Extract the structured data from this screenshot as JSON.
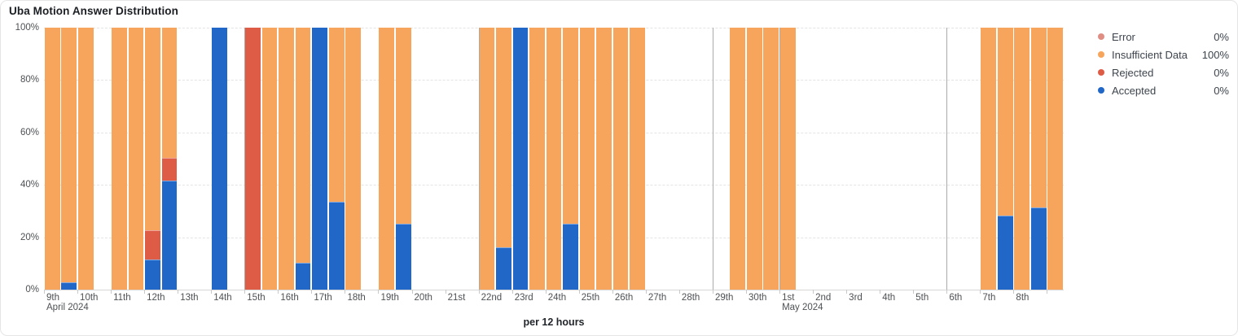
{
  "card": {
    "title": "Uba Motion Answer Distribution"
  },
  "legend": {
    "items": [
      {
        "label": "Error",
        "value": "0%",
        "color": "#E08E83"
      },
      {
        "label": "Insufficient Data",
        "value": "100%",
        "color": "#F7A55C"
      },
      {
        "label": "Rejected",
        "value": "0%",
        "color": "#DE5B46"
      },
      {
        "label": "Accepted",
        "value": "0%",
        "color": "#2067C7"
      }
    ]
  },
  "chart_data": {
    "type": "bar",
    "stacked": true,
    "title": "Uba Motion Answer Distribution",
    "xlabel": "per 12 hours",
    "ylabel": "",
    "ylim": [
      0,
      100
    ],
    "y_ticks": [
      "0%",
      "20%",
      "40%",
      "60%",
      "80%",
      "100%"
    ],
    "grid": "horizontal-dashed",
    "legend_position": "right",
    "bucket_hours": 12,
    "slots_total": 61,
    "colors": {
      "accepted": "#2067C7",
      "rejected": "#DE5B46",
      "insufficient": "#F7A55C",
      "error": "#E08E83",
      "separator": "#ababab"
    },
    "days": [
      {
        "slot": 0,
        "label": "9th",
        "month_label": "April 2024"
      },
      {
        "slot": 2,
        "label": "10th"
      },
      {
        "slot": 4,
        "label": "11th"
      },
      {
        "slot": 6,
        "label": "12th"
      },
      {
        "slot": 8,
        "label": "13th"
      },
      {
        "slot": 10,
        "label": "14th"
      },
      {
        "slot": 12,
        "label": "15th"
      },
      {
        "slot": 14,
        "label": "16th"
      },
      {
        "slot": 16,
        "label": "17th"
      },
      {
        "slot": 18,
        "label": "18th"
      },
      {
        "slot": 20,
        "label": "19th"
      },
      {
        "slot": 22,
        "label": "20th"
      },
      {
        "slot": 24,
        "label": "21st"
      },
      {
        "slot": 26,
        "label": "22nd"
      },
      {
        "slot": 28,
        "label": "23rd"
      },
      {
        "slot": 30,
        "label": "24th"
      },
      {
        "slot": 32,
        "label": "25th"
      },
      {
        "slot": 34,
        "label": "26th"
      },
      {
        "slot": 36,
        "label": "27th"
      },
      {
        "slot": 38,
        "label": "28th"
      },
      {
        "slot": 40,
        "label": "29th"
      },
      {
        "slot": 42,
        "label": "30th"
      },
      {
        "slot": 44,
        "label": "1st",
        "month_label": "May 2024"
      },
      {
        "slot": 46,
        "label": "2nd"
      },
      {
        "slot": 48,
        "label": "3rd"
      },
      {
        "slot": 50,
        "label": "4th"
      },
      {
        "slot": 52,
        "label": "5th"
      },
      {
        "slot": 54,
        "label": "6th"
      },
      {
        "slot": 56,
        "label": "7th"
      },
      {
        "slot": 58,
        "label": "8th"
      },
      {
        "slot": 60,
        "label": ""
      }
    ],
    "separator_slots": [
      12,
      26,
      40,
      44,
      54
    ],
    "bars": [
      {
        "slot": 0,
        "accepted": 0,
        "rejected": 0,
        "insufficient": 100
      },
      {
        "slot": 1,
        "accepted": 2.5,
        "rejected": 0,
        "insufficient": 97.5
      },
      {
        "slot": 2,
        "accepted": 0,
        "rejected": 0,
        "insufficient": 100
      },
      {
        "slot": 4,
        "accepted": 0,
        "rejected": 0,
        "insufficient": 100
      },
      {
        "slot": 5,
        "accepted": 0,
        "rejected": 0,
        "insufficient": 100
      },
      {
        "slot": 6,
        "accepted": 11.1,
        "rejected": 11.1,
        "insufficient": 77.8
      },
      {
        "slot": 7,
        "accepted": 41.7,
        "rejected": 8.3,
        "insufficient": 50
      },
      {
        "slot": 10,
        "accepted": 100,
        "rejected": 0,
        "insufficient": 0
      },
      {
        "slot": 12,
        "accepted": 0,
        "rejected": 100,
        "insufficient": 0
      },
      {
        "slot": 13,
        "accepted": 0,
        "rejected": 0,
        "insufficient": 100
      },
      {
        "slot": 14,
        "accepted": 0,
        "rejected": 0,
        "insufficient": 100
      },
      {
        "slot": 15,
        "accepted": 10,
        "rejected": 0,
        "insufficient": 90
      },
      {
        "slot": 16,
        "accepted": 100,
        "rejected": 0,
        "insufficient": 0
      },
      {
        "slot": 17,
        "accepted": 33.3,
        "rejected": 0,
        "insufficient": 66.7
      },
      {
        "slot": 18,
        "accepted": 0,
        "rejected": 0,
        "insufficient": 100
      },
      {
        "slot": 20,
        "accepted": 0,
        "rejected": 0,
        "insufficient": 100
      },
      {
        "slot": 21,
        "accepted": 25,
        "rejected": 0,
        "insufficient": 75
      },
      {
        "slot": 26,
        "accepted": 0,
        "rejected": 0,
        "insufficient": 100
      },
      {
        "slot": 27,
        "accepted": 16,
        "rejected": 0,
        "insufficient": 84
      },
      {
        "slot": 28,
        "accepted": 100,
        "rejected": 0,
        "insufficient": 0
      },
      {
        "slot": 29,
        "accepted": 0,
        "rejected": 0,
        "insufficient": 100
      },
      {
        "slot": 30,
        "accepted": 0,
        "rejected": 0,
        "insufficient": 100
      },
      {
        "slot": 31,
        "accepted": 25,
        "rejected": 0,
        "insufficient": 75
      },
      {
        "slot": 32,
        "accepted": 0,
        "rejected": 0,
        "insufficient": 100
      },
      {
        "slot": 33,
        "accepted": 0,
        "rejected": 0,
        "insufficient": 100
      },
      {
        "slot": 34,
        "accepted": 0,
        "rejected": 0,
        "insufficient": 100
      },
      {
        "slot": 35,
        "accepted": 0,
        "rejected": 0,
        "insufficient": 100
      },
      {
        "slot": 41,
        "accepted": 0,
        "rejected": 0,
        "insufficient": 100
      },
      {
        "slot": 42,
        "accepted": 0,
        "rejected": 0,
        "insufficient": 100
      },
      {
        "slot": 43,
        "accepted": 0,
        "rejected": 0,
        "insufficient": 100
      },
      {
        "slot": 44,
        "accepted": 0,
        "rejected": 0,
        "insufficient": 100
      },
      {
        "slot": 56,
        "accepted": 0,
        "rejected": 0,
        "insufficient": 100
      },
      {
        "slot": 57,
        "accepted": 28,
        "rejected": 0,
        "insufficient": 72
      },
      {
        "slot": 58,
        "accepted": 0,
        "rejected": 0,
        "insufficient": 100
      },
      {
        "slot": 59,
        "accepted": 31,
        "rejected": 0,
        "insufficient": 69
      },
      {
        "slot": 60,
        "accepted": 0,
        "rejected": 0,
        "insufficient": 100
      }
    ]
  }
}
